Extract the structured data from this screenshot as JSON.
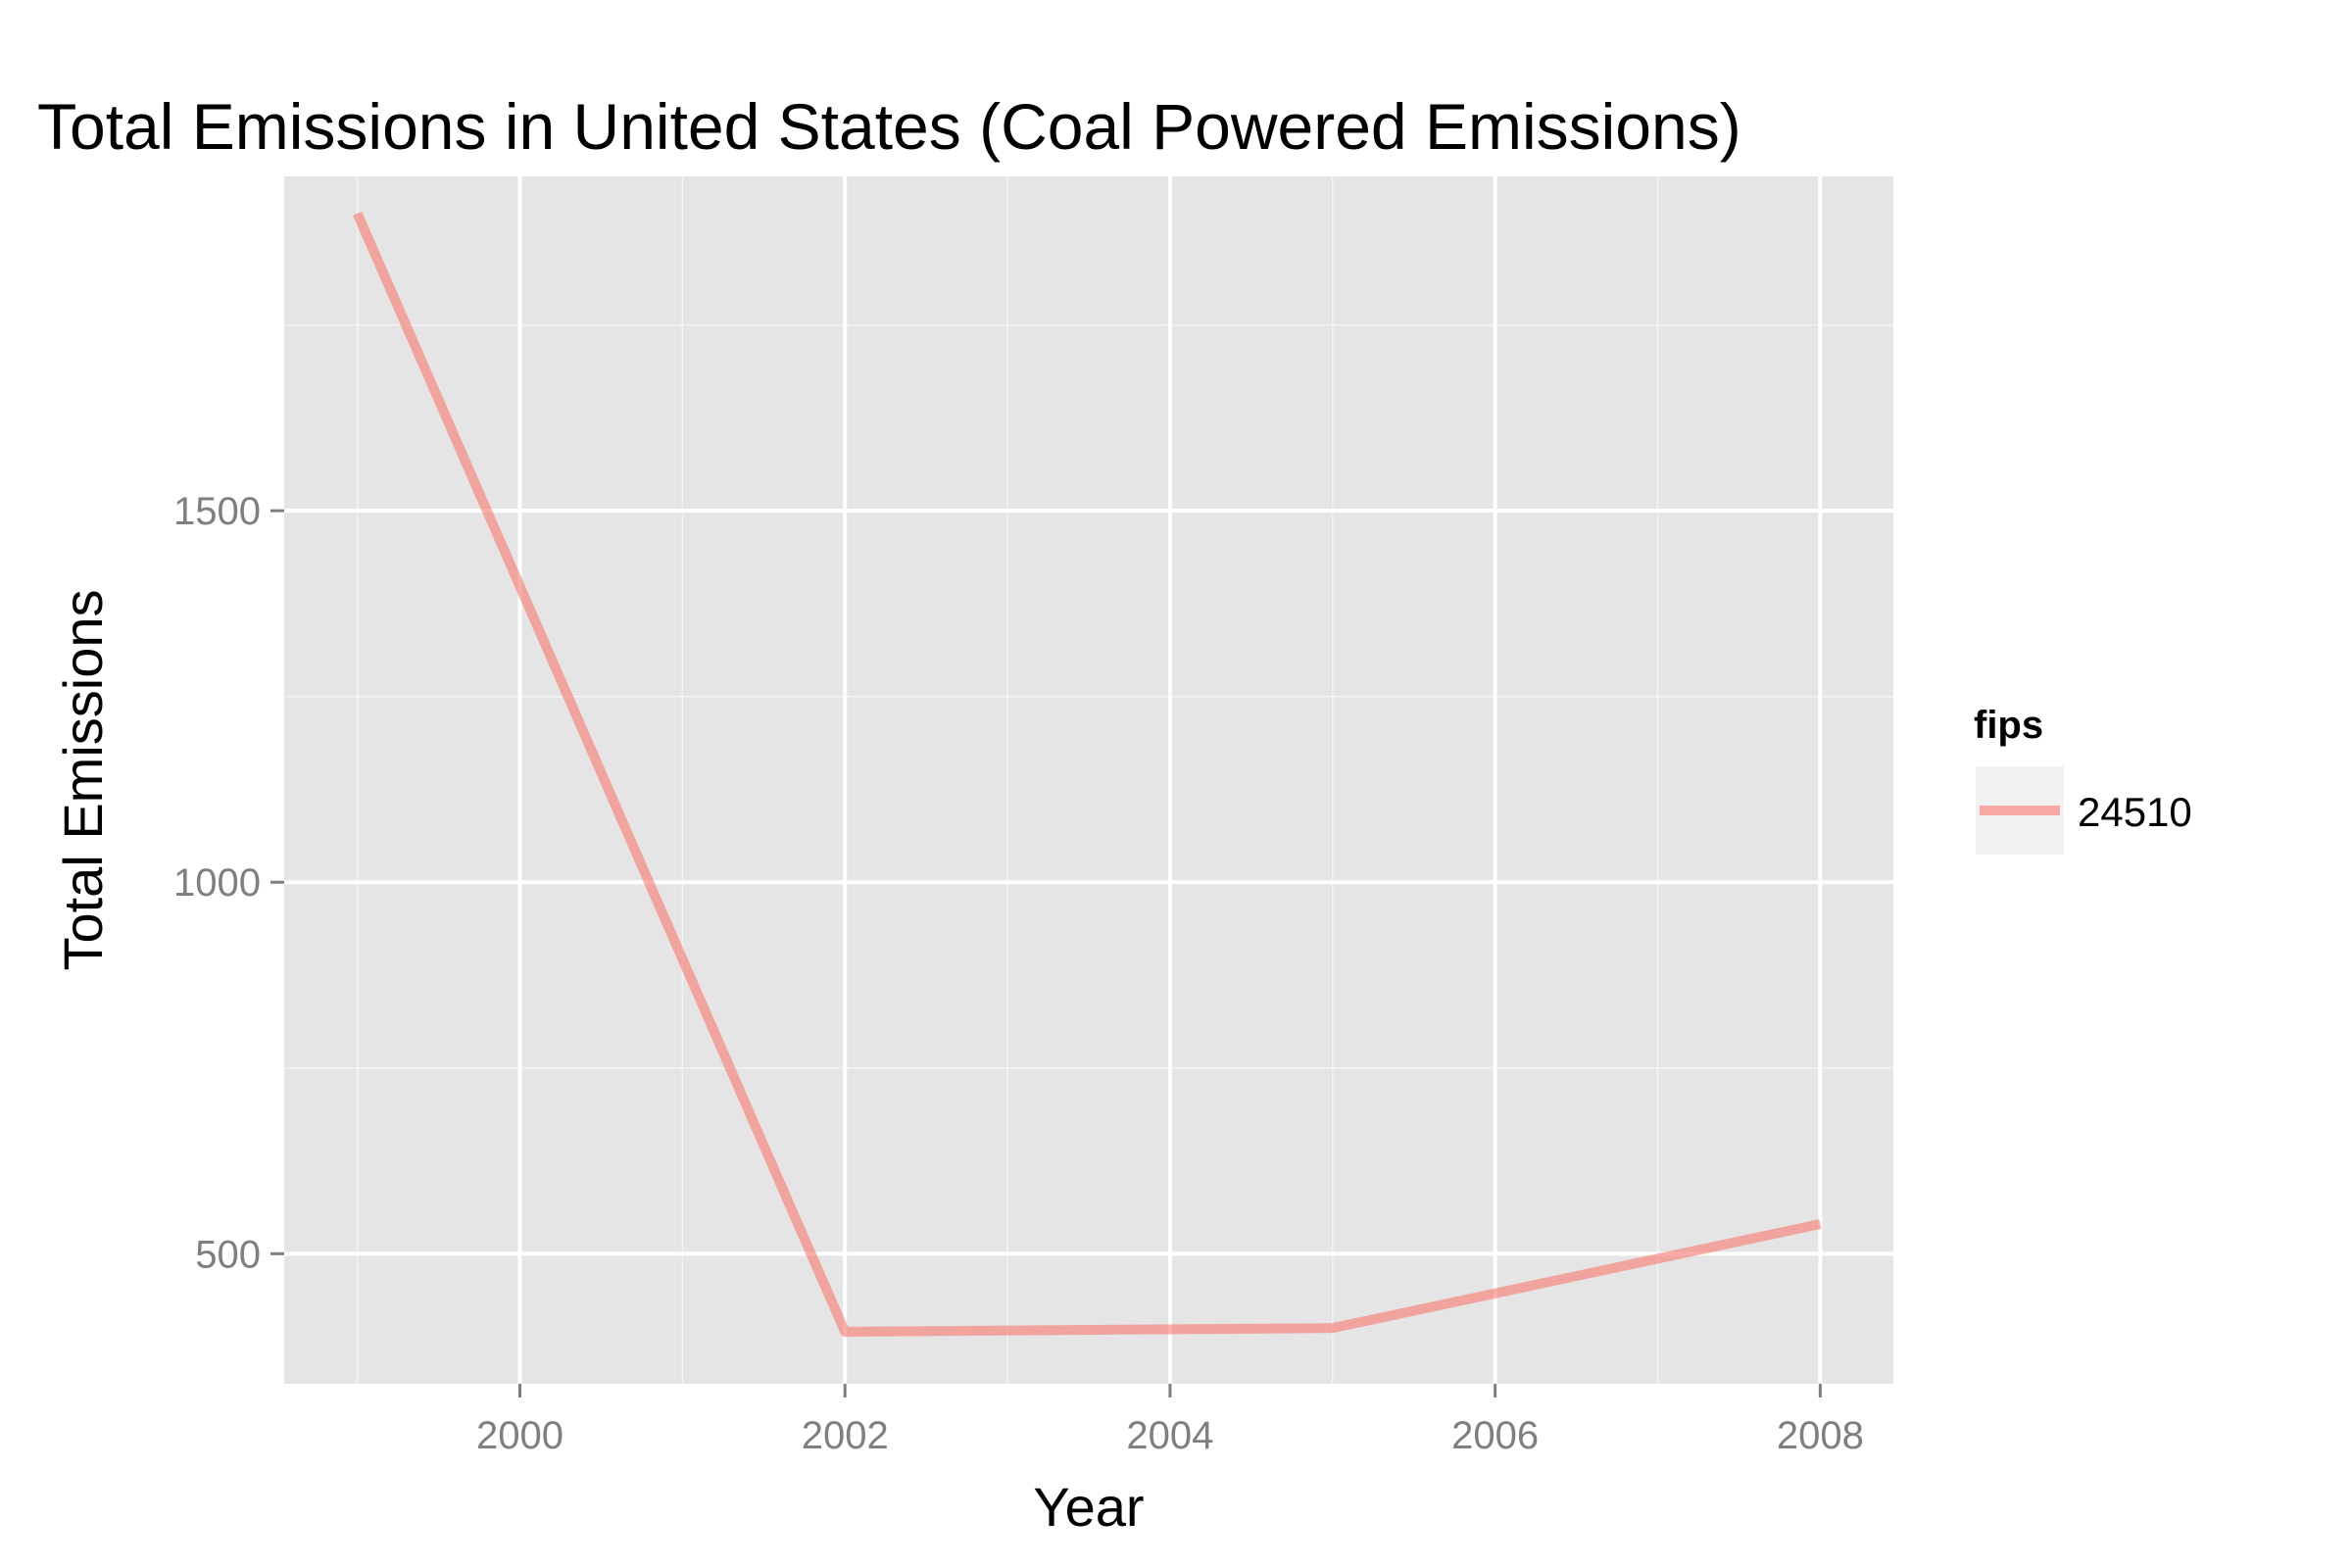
{
  "chart_data": {
    "type": "line",
    "title": "Total Emissions in United States (Coal Powered Emissions)",
    "xlabel": "Year",
    "ylabel": "Total Emissions",
    "x": [
      1999,
      2002,
      2005,
      2008
    ],
    "series": [
      {
        "name": "24510",
        "values": [
          1900,
          395,
          400,
          540
        ],
        "color": "#F8766D"
      }
    ],
    "xlim": [
      1998.55,
      2008.45
    ],
    "ylim": [
      325,
      1950
    ],
    "xticks": [
      2000,
      2002,
      2004,
      2006,
      2008
    ],
    "yticks": [
      500,
      1000,
      1500
    ],
    "xtick_labels": [
      "2000",
      "2002",
      "2004",
      "2006",
      "2008"
    ],
    "ytick_labels": [
      "500",
      "1000",
      "1500"
    ],
    "grid": true,
    "legend": {
      "title": "fips",
      "position": "right"
    },
    "colors": {
      "panel": "#E5E5E5",
      "grid": "#FFFFFF",
      "tick_label": "#7F7F7F"
    }
  }
}
